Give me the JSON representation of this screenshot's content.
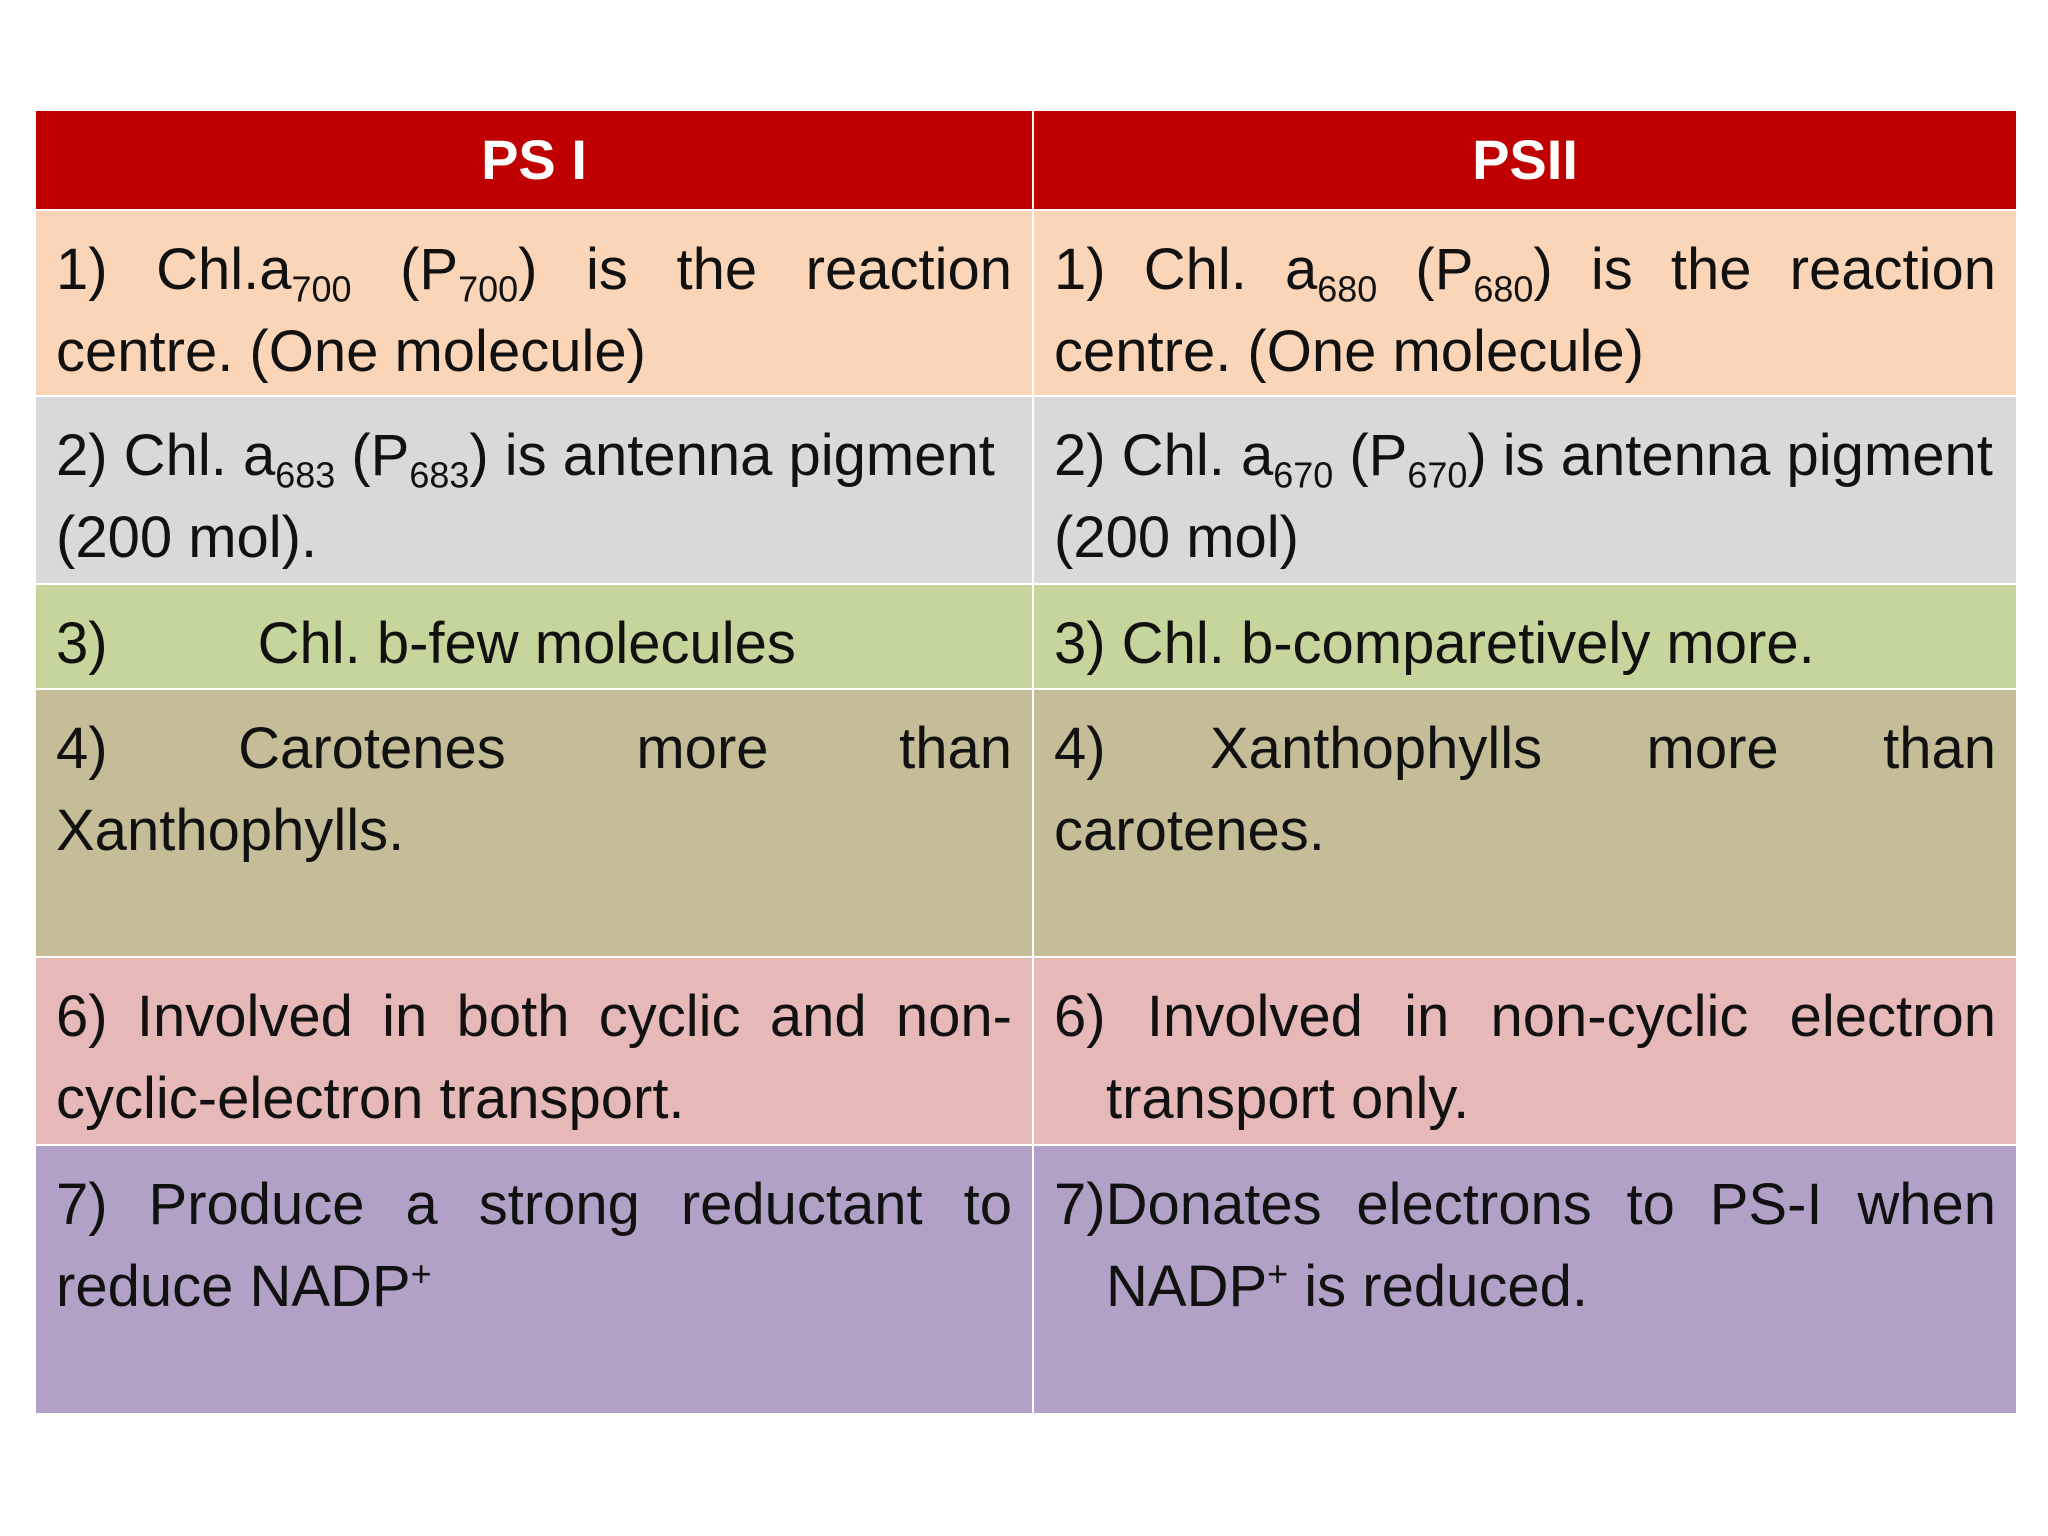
{
  "headers": {
    "ps1": "PS I",
    "ps2": "PSII"
  },
  "colors": {
    "header": "#c00000",
    "row1": "#fbd5b8",
    "row2": "#d9d9dc",
    "row3": "#c4d69c",
    "row4": "#c4bd97",
    "row5": "#e6b8b7",
    "row6": "#b2a1c7"
  },
  "rows": [
    {
      "ps1": {
        "pre": "1) Chl.a",
        "s1": "700",
        "mid": " (P",
        "s2": "700",
        "post": ") is the reaction centre. (One molecule)"
      },
      "ps2": {
        "pre": "1) Chl. a",
        "s1": "680",
        "mid": " (P",
        "s2": "680",
        "post": ") is the reaction centre. (One molecule)"
      }
    },
    {
      "ps1": {
        "pre": "2) Chl. a",
        "s1": "683",
        "mid": " (P",
        "s2": "683",
        "post": ") is antenna pigment (200 mol)."
      },
      "ps2": {
        "pre": "2) Chl. a",
        "s1": "670",
        "mid": " (P",
        "s2": "670",
        "post": ") is antenna pigment (200 mol)"
      }
    },
    {
      "ps1": {
        "num": "3)",
        "text": "Chl. b-few molecules"
      },
      "ps2": {
        "text": "3) Chl. b-comparetively more."
      }
    },
    {
      "ps1": {
        "text": "4) Carotenes more than Xanthophylls."
      },
      "ps2": {
        "text": "4) Xanthophylls more than carotenes."
      }
    },
    {
      "ps1": {
        "text": "6) Involved in both cyclic and non-cyclic-electron transport."
      },
      "ps2": {
        "text": "6) Involved in non-cyclic electron transport only."
      }
    },
    {
      "ps1": {
        "pre": "7) Produce a strong reductant to reduce NADP",
        "sup": "+"
      },
      "ps2": {
        "pre": "7)Donates electrons to PS-I when NADP",
        "sup": "+",
        "post": " is reduced."
      }
    }
  ]
}
